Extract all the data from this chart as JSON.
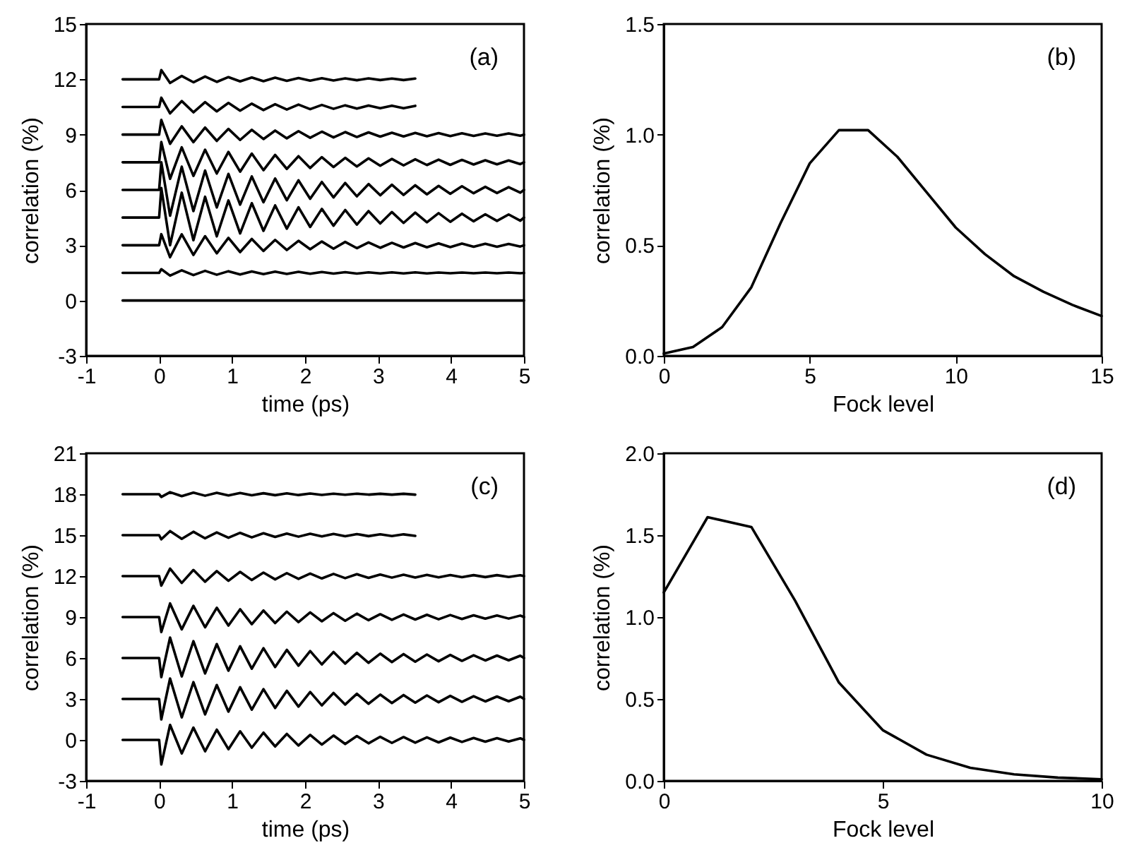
{
  "chart_data": [
    {
      "type": "line",
      "xlabel": "time (ps)",
      "ylabel": "correlation (%)",
      "annotations": [
        "(a)"
      ],
      "xlim": [
        -1,
        5
      ],
      "xticks": [
        -1,
        0,
        1,
        2,
        3,
        4,
        5
      ],
      "ylim": [
        -3,
        15
      ],
      "yticks": [
        -3,
        0,
        3,
        6,
        9,
        12,
        15
      ],
      "line_style": "solid",
      "x": [
        -0.5,
        0,
        0.03,
        0.15,
        0.31,
        0.47,
        0.63,
        0.79,
        0.95,
        1.11,
        1.27,
        1.43,
        1.59,
        1.75,
        1.91,
        2.07,
        2.23,
        2.39,
        2.55,
        2.71,
        2.87,
        3.03,
        3.19,
        3.35,
        3.51,
        3.67,
        3.83,
        3.99,
        4.15,
        4.31,
        4.47,
        4.63,
        4.79,
        4.95,
        5.0
      ],
      "series": [
        {
          "color": "#000000",
          "values": [
            0,
            0,
            0,
            0,
            0,
            0,
            0,
            0,
            0,
            0,
            0,
            0,
            0,
            0,
            0,
            0,
            0,
            0,
            0,
            0,
            0,
            0,
            0,
            0,
            0,
            0,
            0,
            0,
            0,
            0,
            0,
            0,
            0,
            0,
            0
          ]
        },
        {
          "color": "#000000",
          "values": [
            1.5,
            1.5,
            1.7,
            1.35,
            1.64,
            1.38,
            1.61,
            1.4,
            1.59,
            1.41,
            1.58,
            1.43,
            1.57,
            1.44,
            1.56,
            1.45,
            1.55,
            1.46,
            1.54,
            1.46,
            1.53,
            1.47,
            1.53,
            1.47,
            1.53,
            1.47,
            1.52,
            1.48,
            1.52,
            1.48,
            1.52,
            1.48,
            1.52,
            1.48,
            1.5
          ]
        },
        {
          "color": "#000000",
          "values": [
            3,
            3,
            3.6,
            2.35,
            3.59,
            2.47,
            3.49,
            2.56,
            3.4,
            2.63,
            3.34,
            2.69,
            3.29,
            2.74,
            3.24,
            2.78,
            3.2,
            2.81,
            3.18,
            2.84,
            3.15,
            2.86,
            3.13,
            2.88,
            3.12,
            2.89,
            3.1,
            2.9,
            3.09,
            2.92,
            3.08,
            2.92,
            3.07,
            2.93,
            3
          ]
        },
        {
          "color": "#000000",
          "values": [
            4.5,
            4.5,
            6.1,
            3.0,
            5.85,
            3.27,
            5.63,
            3.48,
            5.43,
            3.64,
            5.28,
            3.78,
            5.16,
            3.9,
            5.06,
            3.99,
            4.97,
            4.06,
            4.91,
            4.12,
            4.85,
            4.18,
            4.8,
            4.21,
            4.77,
            4.24,
            4.74,
            4.27,
            4.71,
            4.3,
            4.68,
            4.32,
            4.67,
            4.33,
            4.5
          ]
        },
        {
          "color": "#000000",
          "values": [
            6,
            6,
            7.5,
            4.6,
            7.26,
            4.85,
            7.05,
            5.05,
            6.87,
            5.2,
            6.73,
            5.33,
            6.62,
            5.44,
            6.52,
            5.52,
            6.43,
            5.59,
            6.38,
            5.65,
            6.32,
            5.71,
            6.28,
            5.73,
            6.25,
            5.76,
            6.22,
            5.79,
            6.2,
            5.82,
            6.17,
            5.83,
            6.15,
            5.85,
            6
          ]
        },
        {
          "color": "#000000",
          "values": [
            7.5,
            7.5,
            8.6,
            6.6,
            8.31,
            6.76,
            8.18,
            6.89,
            8.06,
            6.99,
            7.97,
            7.07,
            7.9,
            7.14,
            7.83,
            7.19,
            7.78,
            7.24,
            7.74,
            7.27,
            7.71,
            7.31,
            7.68,
            7.33,
            7.66,
            7.35,
            7.64,
            7.36,
            7.63,
            7.38,
            7.61,
            7.39,
            7.6,
            7.4,
            7.5
          ]
        },
        {
          "color": "#000000",
          "values": [
            9,
            9,
            9.8,
            8.5,
            9.45,
            8.59,
            9.38,
            8.66,
            9.31,
            8.71,
            9.26,
            8.76,
            9.22,
            8.8,
            9.19,
            8.83,
            9.16,
            8.85,
            9.14,
            8.87,
            9.12,
            8.89,
            9.1,
            8.9,
            9.09,
            8.91,
            9.08,
            8.92,
            9.07,
            8.93,
            9.06,
            8.94,
            9.06,
            8.94,
            9
          ]
        },
        {
          "color": "#000000",
          "values": [
            10.5,
            10.5,
            11,
            10.15,
            10.82,
            10.21,
            10.76,
            10.26,
            10.72,
            10.3,
            10.68,
            10.33,
            10.65,
            10.36,
            10.63,
            10.38,
            10.61,
            10.4,
            10.59,
            10.41,
            10.58,
            10.43,
            10.57,
            10.43,
            10.56,
            null,
            null,
            null,
            null,
            null,
            null,
            null,
            null,
            null,
            null
          ]
        },
        {
          "color": "#000000",
          "values": [
            12,
            12,
            12.5,
            11.8,
            12.18,
            11.84,
            12.15,
            11.86,
            12.12,
            11.89,
            12.1,
            11.9,
            12.09,
            11.92,
            12.07,
            11.93,
            12.06,
            11.94,
            12.05,
            11.95,
            12.05,
            11.96,
            12.04,
            11.96,
            12.04,
            null,
            null,
            null,
            null,
            null,
            null,
            null,
            null,
            null,
            null
          ]
        }
      ]
    },
    {
      "type": "line",
      "xlabel": "Fock level",
      "ylabel": "correlation (%)",
      "annotations": [
        "(b)"
      ],
      "xlim": [
        0,
        15
      ],
      "xticks": [
        0,
        5,
        10,
        15
      ],
      "ylim": [
        0,
        1.5
      ],
      "yticks": [
        {
          "value": 0,
          "label": "0.0"
        },
        0.5,
        {
          "value": 1,
          "label": "1.0"
        },
        1.5
      ],
      "line_style": "solid",
      "x": [
        0,
        1,
        2,
        3,
        4,
        5,
        6,
        7,
        8,
        9,
        10,
        11,
        12,
        13,
        14,
        15
      ],
      "series": [
        {
          "color": "#000000",
          "values": [
            0.01,
            0.04,
            0.13,
            0.31,
            0.6,
            0.87,
            1.02,
            1.02,
            0.9,
            0.74,
            0.58,
            0.46,
            0.36,
            0.29,
            0.23,
            0.18
          ]
        }
      ]
    },
    {
      "type": "line",
      "xlabel": "time (ps)",
      "ylabel": "correlation (%)",
      "annotations": [
        "(c)"
      ],
      "xlim": [
        -1,
        5
      ],
      "xticks": [
        -1,
        0,
        1,
        2,
        3,
        4,
        5
      ],
      "ylim": [
        -3,
        21
      ],
      "yticks": [
        -3,
        0,
        3,
        6,
        9,
        12,
        15,
        18,
        21
      ],
      "line_style": "solid",
      "x": [
        -0.5,
        0,
        0.03,
        0.15,
        0.31,
        0.47,
        0.63,
        0.79,
        0.95,
        1.11,
        1.27,
        1.43,
        1.59,
        1.75,
        1.91,
        2.07,
        2.23,
        2.39,
        2.55,
        2.71,
        2.87,
        3.03,
        3.19,
        3.35,
        3.51,
        3.67,
        3.83,
        3.99,
        4.15,
        4.31,
        4.47,
        4.63,
        4.79,
        4.95,
        5.0
      ],
      "series": [
        {
          "color": "#000000",
          "values": [
            0,
            0,
            -1.8,
            1.1,
            -0.99,
            0.9,
            -0.83,
            0.75,
            -0.68,
            0.63,
            -0.57,
            0.53,
            -0.48,
            0.44,
            -0.41,
            0.37,
            -0.34,
            0.32,
            -0.3,
            0.28,
            -0.25,
            0.23,
            -0.22,
            0.21,
            -0.2,
            0.19,
            -0.18,
            0.17,
            -0.15,
            0.14,
            -0.13,
            0.13,
            -0.12,
            0.12,
            0
          ]
        },
        {
          "color": "#000000",
          "values": [
            3,
            3,
            1.5,
            4.5,
            1.65,
            4.23,
            1.87,
            4.02,
            2.07,
            3.86,
            2.22,
            3.72,
            2.34,
            3.6,
            2.44,
            3.51,
            2.53,
            3.44,
            2.59,
            3.38,
            2.65,
            3.32,
            2.7,
            3.29,
            2.73,
            3.26,
            2.76,
            3.23,
            2.79,
            3.2,
            2.82,
            3.18,
            2.83,
            3.17,
            3
          ]
        },
        {
          "color": "#000000",
          "values": [
            6,
            6,
            4.6,
            7.5,
            4.65,
            7.23,
            4.87,
            7.02,
            5.07,
            6.86,
            5.22,
            6.72,
            5.34,
            6.6,
            5.44,
            6.51,
            5.53,
            6.44,
            5.59,
            6.38,
            5.65,
            6.32,
            5.7,
            6.29,
            5.73,
            6.26,
            5.76,
            6.23,
            5.79,
            6.2,
            5.82,
            6.18,
            5.83,
            6.17,
            6
          ]
        },
        {
          "color": "#000000",
          "values": [
            9,
            9,
            7.9,
            10,
            8.1,
            9.82,
            8.25,
            9.68,
            8.38,
            9.57,
            8.48,
            9.48,
            8.56,
            9.4,
            8.63,
            9.34,
            8.69,
            9.29,
            8.73,
            9.25,
            8.77,
            9.21,
            8.8,
            9.19,
            8.82,
            9.17,
            8.84,
            9.15,
            8.86,
            9.13,
            8.88,
            9.12,
            8.89,
            9.11,
            9
          ]
        },
        {
          "color": "#000000",
          "values": [
            12,
            12,
            11.3,
            12.55,
            11.5,
            12.45,
            11.59,
            12.37,
            11.66,
            12.31,
            11.71,
            12.26,
            11.76,
            12.22,
            11.8,
            12.19,
            11.83,
            12.16,
            11.85,
            12.14,
            11.87,
            12.12,
            11.89,
            12.1,
            11.9,
            12.09,
            11.91,
            12.08,
            11.92,
            12.07,
            11.93,
            12.07,
            11.94,
            12.06,
            12
          ]
        },
        {
          "color": "#000000",
          "values": [
            15,
            15,
            14.7,
            15.3,
            14.73,
            15.25,
            14.77,
            15.2,
            14.81,
            15.17,
            14.84,
            15.14,
            14.87,
            15.12,
            14.89,
            15.1,
            14.91,
            15.09,
            14.92,
            15.08,
            14.93,
            15.06,
            14.94,
            15.06,
            14.95,
            null,
            null,
            null,
            null,
            null,
            null,
            null,
            null,
            null,
            null
          ]
        },
        {
          "color": "#000000",
          "values": [
            18,
            18,
            17.8,
            18.15,
            17.86,
            18.12,
            17.89,
            18.1,
            17.91,
            18.09,
            17.92,
            18.07,
            17.93,
            18.06,
            17.94,
            18.05,
            17.95,
            18.04,
            17.96,
            18.04,
            17.97,
            18.03,
            17.97,
            18.03,
            17.97,
            null,
            null,
            null,
            null,
            null,
            null,
            null,
            null,
            null,
            null
          ]
        }
      ]
    },
    {
      "type": "line",
      "xlabel": "Fock level",
      "ylabel": "correlation (%)",
      "annotations": [
        "(d)"
      ],
      "xlim": [
        0,
        10
      ],
      "xticks": [
        0,
        5,
        10
      ],
      "ylim": [
        0,
        2
      ],
      "yticks": [
        {
          "value": 0,
          "label": "0.0"
        },
        0.5,
        {
          "value": 1,
          "label": "1.0"
        },
        1.5,
        {
          "value": 2,
          "label": "2.0"
        }
      ],
      "line_style": "solid",
      "x": [
        0,
        1,
        2,
        3,
        4,
        5,
        6,
        7,
        8,
        9,
        10
      ],
      "series": [
        {
          "color": "#000000",
          "values": [
            1.15,
            1.61,
            1.55,
            1.1,
            0.6,
            0.31,
            0.16,
            0.08,
            0.04,
            0.02,
            0.01
          ]
        }
      ]
    }
  ]
}
